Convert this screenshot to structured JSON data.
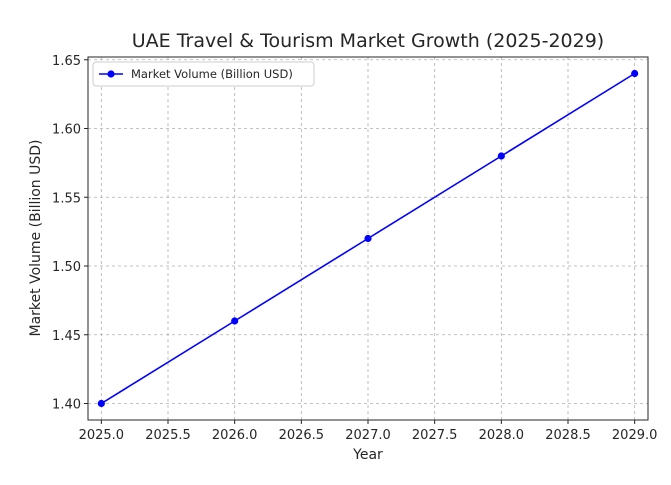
{
  "chart_data": {
    "type": "line",
    "title": "UAE Travel & Tourism Market Growth (2025-2029)",
    "xlabel": "Year",
    "ylabel": "Market Volume (Billion USD)",
    "xlim": [
      2024.9,
      2029.1
    ],
    "ylim": [
      1.388,
      1.652
    ],
    "grid": true,
    "legend_position": "top-left",
    "x_ticks": [
      2025.0,
      2025.5,
      2026.0,
      2026.5,
      2027.0,
      2027.5,
      2028.0,
      2028.5,
      2029.0
    ],
    "x_tick_labels": [
      "2025.0",
      "2025.5",
      "2026.0",
      "2026.5",
      "2027.0",
      "2027.5",
      "2028.0",
      "2028.5",
      "2029.0"
    ],
    "y_ticks": [
      1.4,
      1.45,
      1.5,
      1.55,
      1.6,
      1.65
    ],
    "y_tick_labels": [
      "1.40",
      "1.45",
      "1.50",
      "1.55",
      "1.60",
      "1.65"
    ],
    "series": [
      {
        "name": "Market Volume (Billion USD)",
        "color": "#0000ff",
        "marker": "circle",
        "x": [
          2025,
          2026,
          2027,
          2028,
          2029
        ],
        "values": [
          1.4,
          1.46,
          1.52,
          1.58,
          1.64
        ]
      }
    ]
  }
}
